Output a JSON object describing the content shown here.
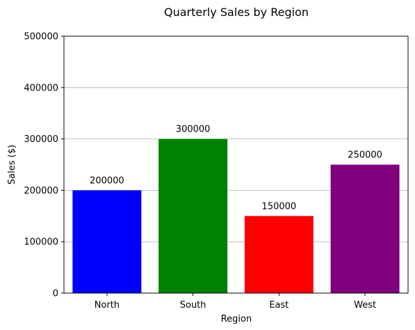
{
  "chart_data": {
    "type": "bar",
    "title": "Quarterly Sales by Region",
    "xlabel": "Region",
    "ylabel": "Sales ($)",
    "categories": [
      "North",
      "South",
      "East",
      "West"
    ],
    "values": [
      200000,
      300000,
      150000,
      250000
    ],
    "data_labels": [
      "200000",
      "300000",
      "150000",
      "250000"
    ],
    "colors": [
      "#0000ff",
      "#008000",
      "#ff0000",
      "#800080"
    ],
    "ylim": [
      0,
      500000
    ],
    "yticks": [
      0,
      100000,
      200000,
      300000,
      400000,
      500000
    ],
    "ytick_labels": [
      "0",
      "100000",
      "200000",
      "300000",
      "400000",
      "500000"
    ],
    "grid": "horizontal",
    "legend": false
  }
}
